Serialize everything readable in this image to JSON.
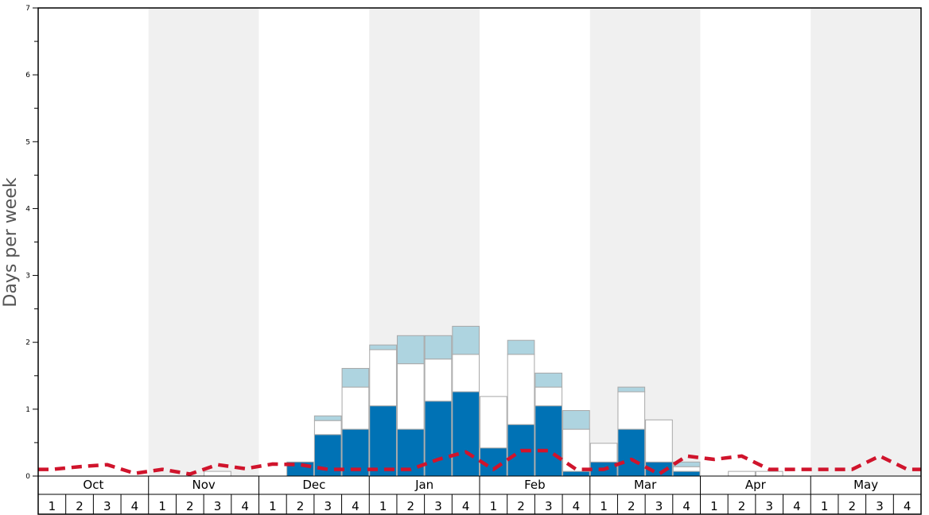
{
  "chart_data": {
    "type": "bar",
    "ylabel": "Days per week",
    "ylim": [
      0,
      7
    ],
    "y_ticks": [
      "0",
      "1",
      "2",
      "3",
      "4",
      "5",
      "6",
      "7"
    ],
    "months": [
      "Oct",
      "Nov",
      "Dec",
      "Jan",
      "Feb",
      "Mar",
      "Apr",
      "May"
    ],
    "weeks": [
      "1",
      "2",
      "3",
      "4"
    ],
    "categories": [
      "Oct 1",
      "Oct 2",
      "Oct 3",
      "Oct 4",
      "Nov 1",
      "Nov 2",
      "Nov 3",
      "Nov 4",
      "Dec 1",
      "Dec 2",
      "Dec 3",
      "Dec 4",
      "Jan 1",
      "Jan 2",
      "Jan 3",
      "Jan 4",
      "Feb 1",
      "Feb 2",
      "Feb 3",
      "Feb 4",
      "Mar 1",
      "Mar 2",
      "Mar 3",
      "Mar 4",
      "Apr 1",
      "Apr 2",
      "Apr 3",
      "Apr 4",
      "May 1",
      "May 2",
      "May 3",
      "May 4"
    ],
    "stacked": true,
    "series": [
      {
        "color": "#0072b5",
        "values": [
          0,
          0,
          0,
          0,
          0,
          0,
          0,
          0,
          0,
          0.21,
          0.62,
          0.7,
          1.05,
          0.7,
          1.12,
          1.26,
          0.42,
          0.77,
          1.05,
          0.07,
          0.21,
          0.7,
          0.21,
          0.07,
          0,
          0,
          0,
          0,
          0,
          0,
          0,
          0
        ]
      },
      {
        "color": "#ffffff",
        "values": [
          0,
          0,
          0,
          0,
          0,
          0,
          0.07,
          0,
          0,
          0,
          0.21,
          0.63,
          0.84,
          0.98,
          0.63,
          0.56,
          0.77,
          1.05,
          0.28,
          0.63,
          0.28,
          0.56,
          0.63,
          0.07,
          0,
          0.07,
          0.07,
          0,
          0,
          0,
          0,
          0
        ]
      },
      {
        "color": "#aed4e0",
        "values": [
          0,
          0,
          0,
          0,
          0,
          0,
          0,
          0,
          0,
          0,
          0.07,
          0.28,
          0.07,
          0.42,
          0.35,
          0.42,
          0,
          0.21,
          0.21,
          0.28,
          0,
          0.07,
          0,
          0.07,
          0,
          0,
          0,
          0,
          0,
          0,
          0,
          0
        ]
      }
    ],
    "line": {
      "color": "#d0142c",
      "style": "dashed",
      "values": [
        0.1,
        0.14,
        0.17,
        0.04,
        0.1,
        0.03,
        0.17,
        0.11,
        0.18,
        0.17,
        0.1,
        0.1,
        0.1,
        0.1,
        0.25,
        0.36,
        0.1,
        0.38,
        0.38,
        0.1,
        0.1,
        0.25,
        0.03,
        0.3,
        0.25,
        0.3,
        0.1,
        0.1,
        0.1,
        0.1,
        0.3,
        0.1
      ]
    },
    "band_colors": [
      "#ffffff",
      "#f0f0f0"
    ],
    "grid": false,
    "legend": "none"
  }
}
